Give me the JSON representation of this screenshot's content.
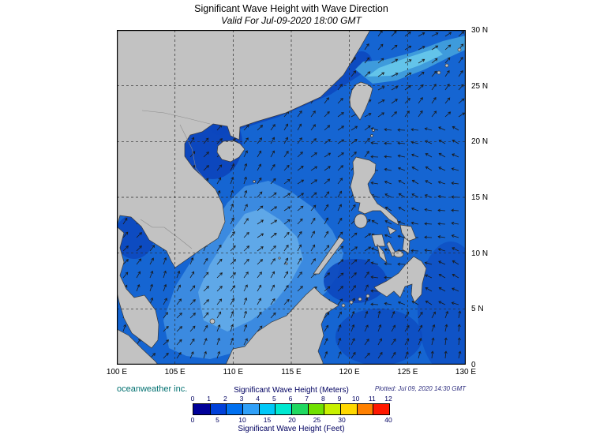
{
  "title": "Significant Wave Height with Wave Direction",
  "subtitle": "Valid For Jul-09-2020 18:00 GMT",
  "credit": "oceanweather inc.",
  "plotted_note": "Plotted: Jul 09, 2020 14:30 GMT",
  "axes": {
    "lat_labels": [
      "30 N",
      "25 N",
      "20 N",
      "15 N",
      "10 N",
      "5 N",
      "0"
    ],
    "lon_labels": [
      "100 E",
      "105 E",
      "110 E",
      "115 E",
      "120 E",
      "125 E",
      "130 E"
    ],
    "lat_range": [
      0,
      30
    ],
    "lon_range": [
      100,
      130
    ]
  },
  "legend": {
    "meters_title": "Significant Wave Height (Meters)",
    "feet_title": "Significant Wave Height (Feet)",
    "meters_ticks": [
      "0",
      "1",
      "2",
      "3",
      "4",
      "5",
      "6",
      "7",
      "8",
      "9",
      "10",
      "11",
      "12"
    ],
    "feet_ticks": [
      "0",
      "5",
      "10",
      "15",
      "20",
      "25",
      "30",
      "40"
    ],
    "feet_values": [
      0,
      5,
      10,
      15,
      20,
      25,
      30,
      40
    ],
    "bar_colors": [
      "#000099",
      "#0040d9",
      "#0070f0",
      "#30a0f8",
      "#00c8f8",
      "#00e8d0",
      "#20d860",
      "#70e000",
      "#c8f000",
      "#ffd800",
      "#ff8000",
      "#ff1800"
    ]
  },
  "map_colors": {
    "land": "#c2c2c2",
    "coastline": "#3a3a3a",
    "borders": "#8c8c8c",
    "sea_base": "#1565d2",
    "sea_dark": "#0c47be",
    "sea_band2": "#3b8ae0",
    "sea_band3": "#5fa8e8",
    "streak1": "#3e9bdc",
    "streak2": "#63c4ea",
    "grid": "#2a2a2a",
    "arrow": "#1a1a1a",
    "frame": "#000000"
  }
}
